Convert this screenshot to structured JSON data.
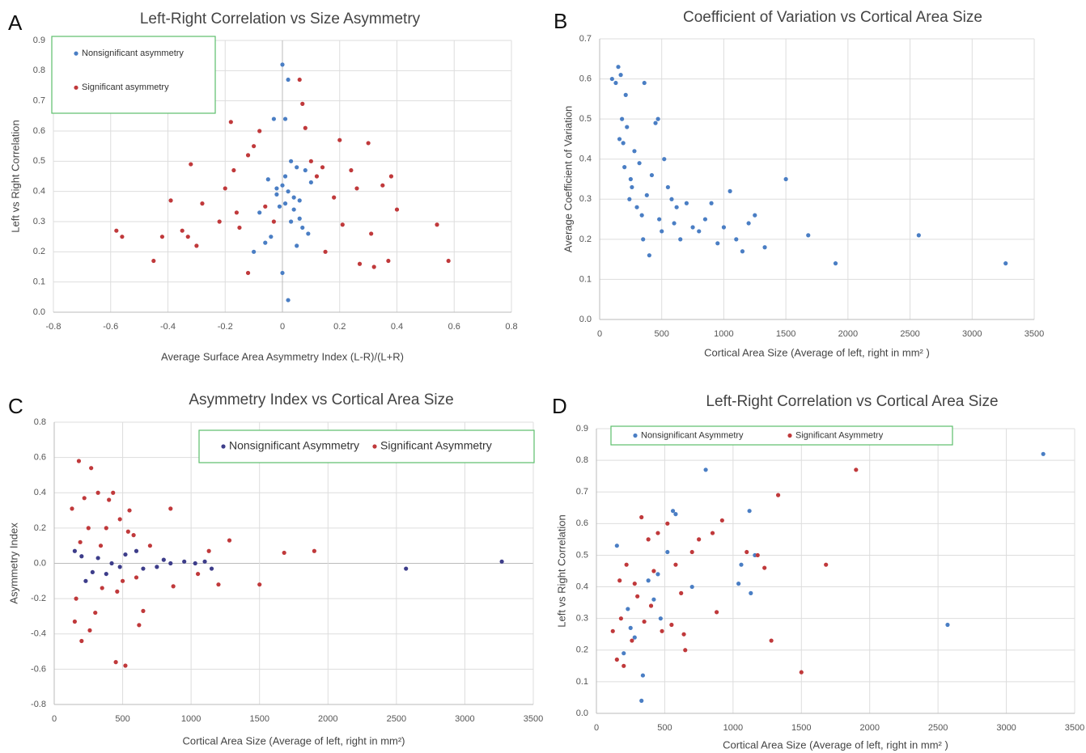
{
  "chart_data": [
    {
      "panel_label": "A",
      "type": "scatter",
      "title": "Left-Right Correlation vs Size Asymmetry",
      "x_label": "Average Surface Area Asymmetry Index  (L-R)/(L+R)",
      "y_label": "Left vs Right Correlation",
      "xlim": [
        -0.8,
        0.8
      ],
      "ylim": [
        0,
        0.9
      ],
      "xticks": [
        -0.8,
        -0.6,
        -0.4,
        -0.2,
        0,
        0.2,
        0.4,
        0.6,
        0.8
      ],
      "yticks": [
        {
          "value": 0,
          "label": "0.0"
        },
        0.1,
        0.2,
        0.3,
        0.4,
        0.5,
        0.6,
        0.7,
        0.8,
        0.9
      ],
      "grid": true,
      "legend": "top-left",
      "series": [
        {
          "name": "Nonsignificant asymmetry",
          "color": "#4a7ec4",
          "x": [
            0.0,
            0.02,
            0.01,
            -0.03,
            0.03,
            0.05,
            -0.05,
            0.0,
            0.02,
            -0.02,
            0.04,
            0.06,
            -0.08,
            -0.1,
            0.08,
            0.1,
            0.01,
            -0.01,
            0.03,
            0.07,
            -0.04,
            0.05,
            0.09,
            0.0,
            -0.06,
            0.02,
            0.06,
            -0.02,
            0.04,
            0.01
          ],
          "values": [
            0.82,
            0.77,
            0.64,
            0.64,
            0.5,
            0.48,
            0.44,
            0.42,
            0.4,
            0.39,
            0.38,
            0.37,
            0.33,
            0.2,
            0.47,
            0.43,
            0.36,
            0.35,
            0.3,
            0.28,
            0.25,
            0.22,
            0.26,
            0.13,
            0.23,
            0.04,
            0.31,
            0.41,
            0.34,
            0.45
          ]
        },
        {
          "name": "Significant asymmetry",
          "color": "#c0393b",
          "x": [
            -0.58,
            -0.56,
            -0.45,
            -0.42,
            -0.39,
            -0.35,
            -0.32,
            -0.33,
            -0.3,
            -0.28,
            -0.22,
            -0.2,
            -0.18,
            -0.17,
            -0.15,
            -0.12,
            -0.12,
            -0.1,
            -0.08,
            -0.06,
            -0.03,
            0.06,
            0.07,
            0.08,
            0.1,
            0.12,
            0.15,
            0.18,
            0.2,
            0.21,
            0.24,
            0.27,
            0.3,
            0.31,
            0.32,
            0.35,
            0.37,
            0.38,
            0.4,
            0.54,
            0.58,
            -0.16,
            0.14,
            0.26
          ],
          "values": [
            0.27,
            0.25,
            0.17,
            0.25,
            0.37,
            0.27,
            0.49,
            0.25,
            0.22,
            0.36,
            0.3,
            0.41,
            0.63,
            0.47,
            0.28,
            0.13,
            0.52,
            0.55,
            0.6,
            0.35,
            0.3,
            0.77,
            0.69,
            0.61,
            0.5,
            0.45,
            0.2,
            0.38,
            0.57,
            0.29,
            0.47,
            0.16,
            0.56,
            0.26,
            0.15,
            0.42,
            0.17,
            0.45,
            0.34,
            0.29,
            0.17,
            0.33,
            0.48,
            0.41
          ]
        }
      ]
    },
    {
      "panel_label": "B",
      "type": "scatter",
      "title": "Coefficient of Variation vs Cortical Area Size",
      "x_label": "Cortical Area Size (Average of left, right in mm² )",
      "y_label": "Average Coefficient of Variation",
      "xlim": [
        0,
        3500
      ],
      "ylim": [
        0,
        0.7
      ],
      "xticks": [
        0,
        500,
        1000,
        1500,
        2000,
        2500,
        3000,
        3500
      ],
      "yticks": [
        {
          "value": 0,
          "label": "0.0"
        },
        0.1,
        0.2,
        0.3,
        0.4,
        0.5,
        0.6,
        0.7
      ],
      "grid": true,
      "series": [
        {
          "color": "#4a7ec4",
          "x": [
            100,
            130,
            150,
            160,
            170,
            180,
            190,
            200,
            210,
            220,
            240,
            250,
            260,
            280,
            300,
            320,
            340,
            350,
            360,
            380,
            400,
            420,
            450,
            470,
            480,
            500,
            520,
            550,
            580,
            600,
            620,
            650,
            700,
            750,
            800,
            850,
            900,
            950,
            1000,
            1050,
            1100,
            1150,
            1200,
            1250,
            1330,
            1500,
            1680,
            1900,
            2570,
            3270
          ],
          "values": [
            0.6,
            0.59,
            0.63,
            0.45,
            0.61,
            0.5,
            0.44,
            0.38,
            0.56,
            0.48,
            0.3,
            0.35,
            0.33,
            0.42,
            0.28,
            0.39,
            0.26,
            0.2,
            0.59,
            0.31,
            0.16,
            0.36,
            0.49,
            0.5,
            0.25,
            0.22,
            0.4,
            0.33,
            0.3,
            0.24,
            0.28,
            0.2,
            0.29,
            0.23,
            0.22,
            0.25,
            0.29,
            0.19,
            0.23,
            0.32,
            0.2,
            0.17,
            0.24,
            0.26,
            0.18,
            0.35,
            0.21,
            0.14,
            0.21,
            0.14
          ]
        }
      ]
    },
    {
      "panel_label": "C",
      "type": "scatter",
      "title": "Asymmetry Index vs Cortical Area Size",
      "x_label": "Cortical Area Size (Average of left, right in mm²)",
      "y_label": "Asymmetry Index",
      "xlim": [
        0,
        3500
      ],
      "ylim": [
        -0.8,
        0.8
      ],
      "xticks": [
        0,
        500,
        1000,
        1500,
        2000,
        2500,
        3000,
        3500
      ],
      "yticks": [
        -0.8,
        -0.6,
        -0.4,
        -0.2,
        {
          "value": 0,
          "label": "0.0"
        },
        0.2,
        0.4,
        0.6,
        0.8
      ],
      "grid": true,
      "legend": "top-right",
      "series": [
        {
          "name": "Nonsignificant Asymmetry",
          "color": "#3d3d8a",
          "x": [
            150,
            200,
            230,
            280,
            320,
            380,
            420,
            480,
            520,
            600,
            650,
            750,
            800,
            850,
            950,
            1030,
            1100,
            1150,
            2570,
            3270
          ],
          "values": [
            0.07,
            0.04,
            -0.1,
            -0.05,
            0.03,
            -0.06,
            0.0,
            -0.02,
            0.05,
            0.07,
            -0.03,
            -0.02,
            0.02,
            0.0,
            0.01,
            0.0,
            0.01,
            -0.03,
            -0.03,
            0.01
          ]
        },
        {
          "name": "Significant Asymmetry",
          "color": "#c0393b",
          "x": [
            130,
            150,
            180,
            200,
            220,
            250,
            270,
            300,
            320,
            350,
            380,
            400,
            430,
            450,
            480,
            500,
            520,
            550,
            580,
            620,
            650,
            700,
            850,
            870,
            1050,
            1130,
            1200,
            1280,
            1500,
            1680,
            1900,
            160,
            260,
            340,
            460,
            540,
            600,
            190
          ],
          "values": [
            0.31,
            -0.33,
            0.58,
            -0.44,
            0.37,
            0.2,
            0.54,
            -0.28,
            0.4,
            -0.14,
            0.2,
            0.36,
            0.4,
            -0.56,
            0.25,
            -0.1,
            -0.58,
            0.3,
            0.16,
            -0.35,
            -0.27,
            0.1,
            0.31,
            -0.13,
            -0.06,
            0.07,
            -0.12,
            0.13,
            -0.12,
            0.06,
            0.07,
            -0.2,
            -0.38,
            0.1,
            -0.16,
            0.18,
            -0.08,
            0.12
          ]
        }
      ]
    },
    {
      "panel_label": "D",
      "type": "scatter",
      "title": "Left-Right Correlation vs Cortical Area Size",
      "x_label": "Cortical Area Size (Average of left, right in mm² )",
      "y_label": "Left vs Right Correlation",
      "xlim": [
        0,
        3500
      ],
      "ylim": [
        0,
        0.9
      ],
      "xticks": [
        0,
        500,
        1000,
        1500,
        2000,
        2500,
        3000,
        3500
      ],
      "yticks": [
        {
          "value": 0,
          "label": "0.0"
        },
        0.1,
        0.2,
        0.3,
        0.4,
        0.5,
        0.6,
        0.7,
        0.8,
        0.9
      ],
      "grid": true,
      "legend": "top-left",
      "series": [
        {
          "name": "Nonsignificant Asymmetry",
          "color": "#4a7ec4",
          "x": [
            150,
            200,
            230,
            280,
            330,
            340,
            380,
            420,
            470,
            520,
            560,
            580,
            700,
            800,
            1040,
            1060,
            1120,
            1130,
            1160,
            2570,
            3270,
            250,
            450
          ],
          "values": [
            0.53,
            0.19,
            0.33,
            0.24,
            0.04,
            0.12,
            0.42,
            0.36,
            0.3,
            0.51,
            0.64,
            0.63,
            0.4,
            0.77,
            0.41,
            0.47,
            0.64,
            0.38,
            0.5,
            0.28,
            0.82,
            0.27,
            0.44
          ]
        },
        {
          "name": "Significant Asymmetry",
          "color": "#c0393b",
          "x": [
            120,
            150,
            170,
            200,
            220,
            260,
            300,
            330,
            350,
            380,
            420,
            450,
            480,
            520,
            550,
            580,
            620,
            650,
            700,
            750,
            850,
            880,
            920,
            1100,
            1180,
            1230,
            1280,
            1330,
            1500,
            1680,
            1900,
            180,
            280,
            400,
            640
          ],
          "values": [
            0.26,
            0.17,
            0.42,
            0.15,
            0.47,
            0.23,
            0.37,
            0.62,
            0.29,
            0.55,
            0.45,
            0.57,
            0.26,
            0.6,
            0.28,
            0.47,
            0.38,
            0.2,
            0.51,
            0.55,
            0.57,
            0.32,
            0.61,
            0.51,
            0.5,
            0.46,
            0.23,
            0.69,
            0.13,
            0.47,
            0.77,
            0.3,
            0.41,
            0.34,
            0.25
          ]
        }
      ]
    }
  ]
}
